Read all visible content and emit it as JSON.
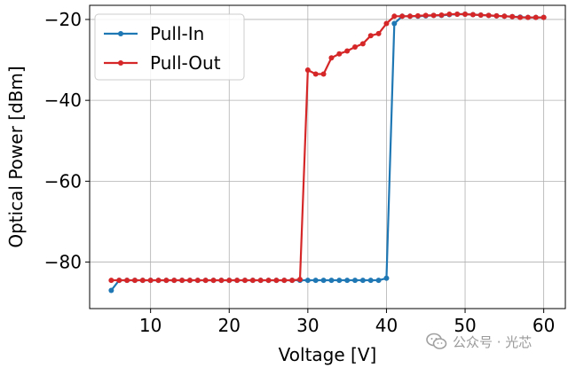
{
  "chart_data": {
    "type": "line",
    "title": "",
    "xlabel": "Voltage [V]",
    "ylabel": "Optical Power [dBm]",
    "xlim": [
      2.25,
      62.75
    ],
    "ylim": [
      -91.5,
      -16.5
    ],
    "xticks": [
      10,
      20,
      30,
      40,
      50,
      60
    ],
    "yticks": [
      -80,
      -60,
      -40,
      -20
    ],
    "xtick_labels": [
      "10",
      "20",
      "30",
      "40",
      "50",
      "60"
    ],
    "ytick_labels": [
      "−80",
      "−60",
      "−40",
      "−20"
    ],
    "grid": true,
    "legend_position": "top-left",
    "series": [
      {
        "name": "Pull-In",
        "color": "#1f77b4",
        "x": [
          5,
          6,
          7,
          8,
          9,
          10,
          11,
          12,
          13,
          14,
          15,
          16,
          17,
          18,
          19,
          20,
          21,
          22,
          23,
          24,
          25,
          26,
          27,
          28,
          29,
          30,
          31,
          32,
          33,
          34,
          35,
          36,
          37,
          38,
          39,
          40,
          41,
          42,
          43,
          44,
          45,
          46,
          47,
          48,
          49,
          50,
          51,
          52,
          53,
          54,
          55,
          56,
          57,
          58,
          59,
          60
        ],
        "y": [
          -87,
          -84.5,
          -84.5,
          -84.5,
          -84.5,
          -84.5,
          -84.5,
          -84.5,
          -84.5,
          -84.5,
          -84.5,
          -84.5,
          -84.5,
          -84.5,
          -84.5,
          -84.5,
          -84.5,
          -84.5,
          -84.5,
          -84.5,
          -84.5,
          -84.5,
          -84.5,
          -84.5,
          -84.5,
          -84.5,
          -84.5,
          -84.5,
          -84.5,
          -84.5,
          -84.5,
          -84.5,
          -84.5,
          -84.5,
          -84.5,
          -84,
          -21,
          -19.2,
          -19.2,
          -19.2,
          -19.1,
          -19.0,
          -19.0,
          -18.8,
          -18.7,
          -18.7,
          -18.8,
          -18.9,
          -19.0,
          -19.1,
          -19.2,
          -19.3,
          -19.4,
          -19.5,
          -19.5,
          -19.5
        ]
      },
      {
        "name": "Pull-Out",
        "color": "#d62728",
        "x": [
          5,
          6,
          7,
          8,
          9,
          10,
          11,
          12,
          13,
          14,
          15,
          16,
          17,
          18,
          19,
          20,
          21,
          22,
          23,
          24,
          25,
          26,
          27,
          28,
          29,
          30,
          31,
          32,
          33,
          34,
          35,
          36,
          37,
          38,
          39,
          40,
          41,
          42,
          43,
          44,
          45,
          46,
          47,
          48,
          49,
          50,
          51,
          52,
          53,
          54,
          55,
          56,
          57,
          58,
          59,
          60
        ],
        "y": [
          -84.5,
          -84.5,
          -84.5,
          -84.5,
          -84.5,
          -84.5,
          -84.5,
          -84.5,
          -84.5,
          -84.5,
          -84.5,
          -84.5,
          -84.5,
          -84.5,
          -84.5,
          -84.5,
          -84.5,
          -84.5,
          -84.5,
          -84.5,
          -84.5,
          -84.5,
          -84.5,
          -84.5,
          -84.3,
          -32.5,
          -33.5,
          -33.5,
          -29.5,
          -28.5,
          -27.8,
          -26.8,
          -26,
          -24,
          -23.5,
          -21,
          -19.2,
          -19.2,
          -19.2,
          -19.1,
          -19.0,
          -19.0,
          -18.9,
          -18.7,
          -18.7,
          -18.7,
          -18.8,
          -18.9,
          -19.0,
          -19.1,
          -19.2,
          -19.3,
          -19.5,
          -19.5,
          -19.5,
          -19.5
        ]
      }
    ]
  },
  "watermark": {
    "text": "公众号 · 光芯",
    "icon": "wechat-icon"
  }
}
